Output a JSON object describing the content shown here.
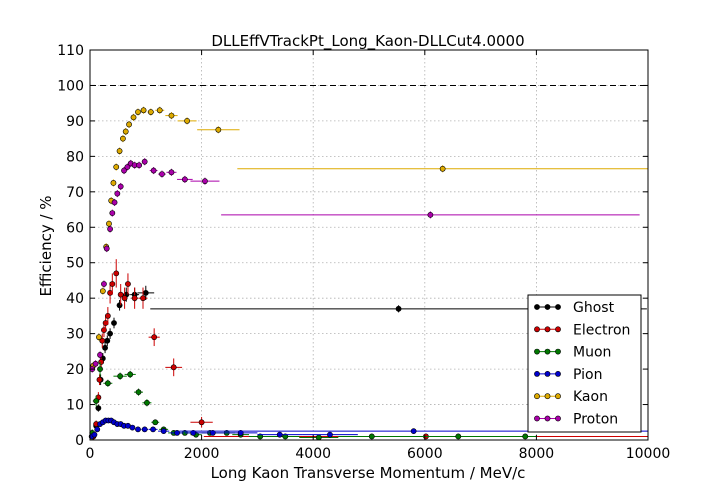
{
  "chart_data": {
    "type": "scatter",
    "title": "DLLEffVTrackPt_Long_Kaon-DLLCut4.0000",
    "xlabel": "Long Kaon Transverse Momentum / MeV/c",
    "ylabel": "Efficiency / %",
    "xlim": [
      0,
      10000
    ],
    "ylim": [
      0,
      110
    ],
    "xticks": [
      0,
      2000,
      4000,
      6000,
      8000,
      10000
    ],
    "yticks": [
      0,
      10,
      20,
      30,
      40,
      50,
      60,
      70,
      80,
      90,
      100,
      110
    ],
    "xtick_labels": [
      "0",
      "2000",
      "4000",
      "6000",
      "8000",
      "10000"
    ],
    "ytick_labels": [
      "0",
      "10",
      "20",
      "30",
      "40",
      "50",
      "60",
      "70",
      "80",
      "90",
      "100",
      "110"
    ],
    "reference_line_y": 100,
    "grid": true,
    "legend_position": "bottom-right",
    "series": [
      {
        "name": "Ghost",
        "color": "#000000",
        "points": [
          [
            60,
            1,
            30,
            0.5
          ],
          [
            110,
            4,
            25,
            1
          ],
          [
            150,
            9,
            20,
            1
          ],
          [
            190,
            17,
            20,
            1.5
          ],
          [
            230,
            23,
            20,
            1.5
          ],
          [
            270,
            26,
            20,
            1.5
          ],
          [
            310,
            28,
            20,
            1.5
          ],
          [
            360,
            30,
            25,
            1.5
          ],
          [
            430,
            33,
            35,
            1.5
          ],
          [
            530,
            38,
            50,
            1.5
          ],
          [
            650,
            41,
            60,
            2
          ],
          [
            800,
            41,
            80,
            2
          ],
          [
            1000,
            41.5,
            150,
            2
          ],
          [
            5530,
            37,
            4450,
            1
          ]
        ]
      },
      {
        "name": "Electron",
        "color": "#cc0000",
        "points": [
          [
            60,
            1,
            30,
            1
          ],
          [
            110,
            4.5,
            20,
            1
          ],
          [
            150,
            12,
            20,
            1.5
          ],
          [
            170,
            17,
            20,
            1.5
          ],
          [
            200,
            22,
            20,
            2
          ],
          [
            220,
            28,
            20,
            2
          ],
          [
            250,
            31,
            20,
            2
          ],
          [
            280,
            33,
            20,
            2
          ],
          [
            320,
            35,
            20,
            2.5
          ],
          [
            360,
            41.5,
            30,
            3
          ],
          [
            400,
            44,
            30,
            3
          ],
          [
            470,
            47,
            40,
            4
          ],
          [
            550,
            41,
            40,
            3
          ],
          [
            620,
            40,
            40,
            3
          ],
          [
            680,
            44,
            50,
            3
          ],
          [
            800,
            40,
            60,
            3
          ],
          [
            950,
            40,
            80,
            3
          ],
          [
            1150,
            29,
            100,
            2.5
          ],
          [
            1500,
            20.5,
            150,
            2.5
          ],
          [
            2000,
            5,
            200,
            1.5
          ],
          [
            6020,
            1,
            3980,
            0.5
          ]
        ]
      },
      {
        "name": "Muon",
        "color": "#007700",
        "points": [
          [
            40,
            2,
            20,
            1
          ],
          [
            110,
            11,
            60,
            1.5
          ],
          [
            180,
            20,
            40,
            2
          ],
          [
            320,
            16,
            80,
            1
          ],
          [
            540,
            18,
            120,
            1
          ],
          [
            720,
            18.5,
            100,
            1
          ],
          [
            870,
            13.5,
            80,
            1
          ],
          [
            1020,
            10.5,
            80,
            1
          ],
          [
            1170,
            5,
            70,
            0.7
          ],
          [
            1320,
            3,
            80,
            0.5
          ],
          [
            1500,
            2,
            100,
            0.5
          ],
          [
            1700,
            2,
            100,
            0.5
          ],
          [
            1900,
            1.5,
            100,
            0.5
          ],
          [
            2150,
            2,
            150,
            0.5
          ],
          [
            2450,
            2,
            150,
            0.5
          ],
          [
            2700,
            1.5,
            150,
            0.5
          ],
          [
            3050,
            1,
            200,
            0.5
          ],
          [
            3500,
            1,
            250,
            0.5
          ],
          [
            4100,
            0.7,
            350,
            0.5
          ],
          [
            5050,
            1,
            600,
            0.5
          ],
          [
            6600,
            1,
            1000,
            0.5
          ],
          [
            7800,
            1,
            200,
            0.5
          ]
        ]
      },
      {
        "name": "Pion",
        "color": "#0000cc",
        "points": [
          [
            30,
            1,
            20,
            0.5
          ],
          [
            80,
            1.5,
            20,
            0.5
          ],
          [
            130,
            3,
            20,
            0.5
          ],
          [
            180,
            4.5,
            20,
            0.5
          ],
          [
            230,
            5,
            20,
            0.5
          ],
          [
            280,
            5.5,
            25,
            0.5
          ],
          [
            330,
            5.5,
            25,
            0.5
          ],
          [
            380,
            5.5,
            25,
            0.5
          ],
          [
            430,
            5,
            25,
            0.5
          ],
          [
            490,
            4.5,
            30,
            0.5
          ],
          [
            550,
            4.5,
            30,
            0.5
          ],
          [
            610,
            4,
            30,
            0.5
          ],
          [
            680,
            4,
            35,
            0.5
          ],
          [
            760,
            3.5,
            40,
            0.5
          ],
          [
            860,
            3,
            50,
            0.5
          ],
          [
            980,
            3,
            60,
            0.5
          ],
          [
            1130,
            3,
            80,
            0.5
          ],
          [
            1320,
            2.5,
            100,
            0.5
          ],
          [
            1560,
            2,
            120,
            0.5
          ],
          [
            1850,
            2,
            150,
            0.5
          ],
          [
            2200,
            2,
            200,
            0.5
          ],
          [
            2700,
            2,
            300,
            0.5
          ],
          [
            3400,
            1.5,
            400,
            0.5
          ],
          [
            4300,
            1.5,
            500,
            0.5
          ],
          [
            5800,
            2.5,
            4200,
            0.5
          ]
        ]
      },
      {
        "name": "Kaon",
        "color": "#ddaa00",
        "points": [
          [
            60,
            21,
            30,
            1
          ],
          [
            160,
            29,
            30,
            1
          ],
          [
            230,
            42,
            30,
            1
          ],
          [
            290,
            54.5,
            20,
            1
          ],
          [
            340,
            61,
            20,
            1
          ],
          [
            380,
            67.5,
            20,
            1
          ],
          [
            420,
            72.5,
            20,
            1
          ],
          [
            470,
            77,
            25,
            1
          ],
          [
            530,
            81.5,
            25,
            1
          ],
          [
            590,
            85,
            25,
            1
          ],
          [
            640,
            87,
            25,
            1
          ],
          [
            700,
            89,
            30,
            1
          ],
          [
            780,
            91,
            35,
            1
          ],
          [
            860,
            92.5,
            40,
            1
          ],
          [
            960,
            93,
            50,
            1
          ],
          [
            1090,
            92.5,
            60,
            1
          ],
          [
            1250,
            93,
            80,
            1
          ],
          [
            1460,
            91.5,
            110,
            1
          ],
          [
            1740,
            90,
            170,
            1
          ],
          [
            2300,
            87.5,
            380,
            1
          ],
          [
            6320,
            76.5,
            3680,
            1
          ]
        ]
      },
      {
        "name": "Proton",
        "color": "#aa00aa",
        "points": [
          [
            40,
            20,
            20,
            1
          ],
          [
            100,
            21.5,
            30,
            1
          ],
          [
            180,
            24,
            30,
            1
          ],
          [
            250,
            44,
            20,
            1
          ],
          [
            300,
            54,
            20,
            1
          ],
          [
            360,
            59.5,
            20,
            1
          ],
          [
            400,
            64,
            20,
            1
          ],
          [
            440,
            67,
            20,
            1
          ],
          [
            490,
            69.5,
            20,
            1
          ],
          [
            550,
            71.5,
            25,
            1
          ],
          [
            610,
            76,
            25,
            1
          ],
          [
            670,
            77,
            25,
            1
          ],
          [
            730,
            78,
            30,
            1
          ],
          [
            800,
            77.5,
            30,
            1
          ],
          [
            880,
            77.5,
            40,
            1
          ],
          [
            980,
            78.5,
            50,
            1
          ],
          [
            1140,
            76,
            70,
            1
          ],
          [
            1290,
            75,
            70,
            1
          ],
          [
            1460,
            75.5,
            90,
            1
          ],
          [
            1700,
            73.5,
            140,
            1
          ],
          [
            2060,
            73,
            260,
            1
          ],
          [
            6100,
            63.5,
            3750,
            1
          ]
        ]
      }
    ]
  }
}
